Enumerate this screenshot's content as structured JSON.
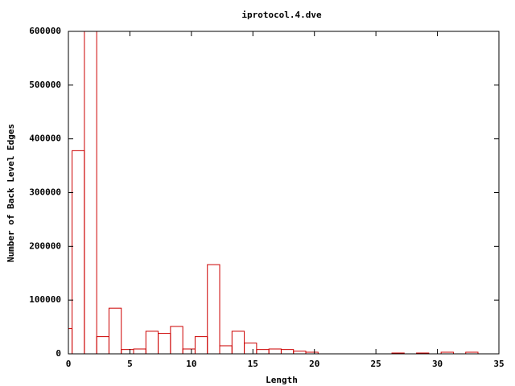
{
  "chart_data": {
    "type": "histogram",
    "title": "iprotocol.4.dve",
    "xlabel": "Length",
    "ylabel": "Number of Back Level Edges",
    "bins": [
      -0.7,
      0.3,
      1.3,
      2.3,
      3.3,
      4.3,
      5.3,
      6.3,
      7.3,
      8.3,
      9.3,
      10.3,
      11.3,
      12.3,
      13.3,
      14.3,
      15.3,
      16.3,
      17.3,
      18.3,
      19.3,
      20.3,
      21.3,
      22.3,
      23.3,
      24.3,
      25.3,
      26.3,
      27.3,
      28.3,
      29.3,
      30.3,
      31.3,
      32.3,
      33.3
    ],
    "values": [
      47000,
      378000,
      650000,
      32000,
      85000,
      8000,
      9000,
      42000,
      38000,
      51000,
      9000,
      32000,
      166000,
      15000,
      42000,
      20000,
      8000,
      9000,
      8000,
      5000,
      3000,
      0,
      0,
      0,
      0,
      0,
      0,
      1500,
      0,
      1500,
      0,
      3000,
      0,
      3000
    ],
    "color": "#cc0000",
    "xlim": [
      0,
      35
    ],
    "xticks": [
      0,
      5,
      10,
      15,
      20,
      25,
      30,
      35
    ],
    "ylim": [
      0,
      600000
    ],
    "yticks": [
      0,
      100000,
      200000,
      300000,
      400000,
      500000,
      600000
    ]
  }
}
